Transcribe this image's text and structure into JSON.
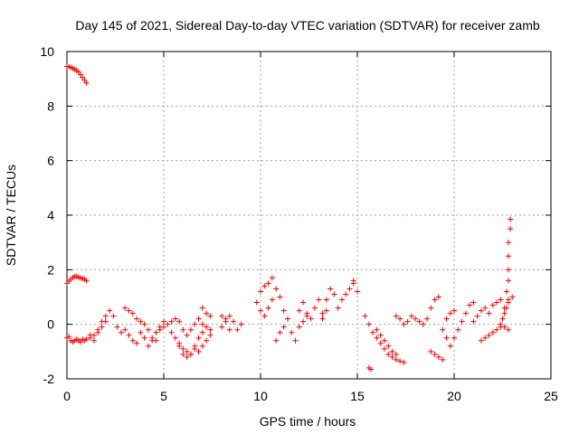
{
  "chart_data": {
    "type": "scatter",
    "title": "Day 145 of 2021, Sidereal Day-to-day VTEC variation (SDTVAR) for receiver zamb",
    "xlabel": "GPS time / hours",
    "ylabel": "SDTVAR / TECUs",
    "xlim": [
      0,
      25
    ],
    "ylim": [
      -2,
      10
    ],
    "xticks": [
      0,
      5,
      10,
      15,
      20,
      25
    ],
    "yticks": [
      -2,
      0,
      2,
      4,
      6,
      8,
      10
    ],
    "grid": true,
    "marker": "+",
    "color": "#ff0000",
    "series": [
      {
        "name": "SDTVAR",
        "x": [
          0.0,
          0.1,
          0.2,
          0.3,
          0.4,
          0.5,
          0.6,
          0.7,
          0.8,
          0.9,
          1.0,
          0.0,
          0.1,
          0.2,
          0.3,
          0.4,
          0.5,
          0.6,
          0.7,
          0.8,
          0.9,
          1.0,
          0.0,
          0.1,
          0.2,
          0.3,
          0.4,
          0.5,
          0.6,
          0.7,
          0.8,
          0.9,
          1.0,
          1.2,
          1.4,
          1.6,
          1.8,
          2.0,
          1.2,
          1.4,
          1.6,
          1.8,
          2.0,
          2.2,
          2.4,
          2.6,
          2.8,
          3.0,
          3.0,
          3.2,
          3.4,
          3.6,
          3.8,
          4.0,
          4.2,
          4.4,
          4.6,
          4.8,
          5.0,
          3.2,
          3.4,
          3.6,
          3.8,
          4.0,
          4.2,
          4.4,
          4.6,
          4.8,
          5.0,
          5.2,
          5.4,
          5.6,
          5.8,
          6.0,
          6.2,
          6.4,
          6.6,
          6.8,
          7.0,
          7.2,
          7.4,
          5.4,
          5.6,
          5.8,
          6.0,
          6.2,
          6.4,
          6.6,
          6.8,
          7.0,
          5.8,
          6.0,
          6.2,
          6.4,
          6.6,
          6.8,
          7.0,
          7.2,
          7.4,
          7.0,
          7.2,
          7.4,
          8.0,
          8.2,
          8.4,
          8.6,
          8.8,
          9.0,
          8.0,
          8.2,
          8.4,
          9.8,
          10.0,
          10.2,
          10.4,
          10.6,
          10.0,
          10.2,
          10.4,
          10.6,
          10.8,
          11.0,
          11.2,
          11.4,
          11.6,
          11.8,
          10.8,
          11.0,
          11.2,
          12.0,
          12.2,
          12.4,
          12.6,
          12.8,
          13.0,
          12.0,
          12.2,
          12.4,
          13.2,
          13.4,
          13.6,
          13.8,
          13.2,
          13.4,
          14.0,
          14.2,
          14.4,
          14.6,
          14.8,
          14.8,
          15.0,
          15.4,
          15.6,
          15.8,
          16.0,
          16.2,
          16.4,
          16.6,
          16.8,
          17.0,
          17.2,
          17.4,
          15.6,
          15.7,
          16.0,
          16.2,
          16.4,
          16.6,
          16.8,
          17.0,
          17.0,
          17.2,
          17.4,
          17.6,
          17.8,
          18.0,
          18.2,
          18.4,
          18.6,
          18.8,
          19.0,
          19.2,
          19.4,
          18.8,
          19.0,
          19.2,
          19.4,
          19.6,
          19.8,
          20.0,
          20.2,
          20.4,
          20.6,
          20.8,
          21.0,
          19.6,
          19.8,
          20.0,
          21.0,
          21.2,
          21.4,
          21.6,
          21.8,
          22.0,
          22.2,
          22.4,
          22.6,
          22.8,
          23.0,
          21.4,
          21.6,
          21.8,
          22.0,
          22.2,
          22.4,
          22.6,
          22.8,
          22.4,
          22.5,
          22.6,
          22.7,
          22.8,
          22.7,
          22.8,
          22.8,
          22.8,
          22.8,
          22.9,
          22.9
        ],
        "y": [
          9.45,
          9.45,
          9.42,
          9.38,
          9.35,
          9.3,
          9.25,
          9.15,
          9.05,
          8.95,
          8.85,
          1.5,
          1.58,
          1.65,
          1.72,
          1.75,
          1.75,
          1.72,
          1.7,
          1.68,
          1.65,
          1.6,
          -0.5,
          -0.45,
          -0.6,
          -0.65,
          -0.6,
          -0.55,
          -0.6,
          -0.65,
          -0.55,
          -0.6,
          -0.55,
          -0.5,
          -0.4,
          -0.3,
          -0.1,
          0.1,
          -0.4,
          -0.6,
          -0.2,
          0.1,
          0.3,
          0.5,
          0.3,
          -0.1,
          -0.3,
          -0.2,
          0.6,
          0.5,
          0.4,
          0.2,
          0.1,
          0.0,
          -0.2,
          -0.5,
          -0.6,
          -0.1,
          0.1,
          -0.4,
          -0.6,
          -0.7,
          -0.3,
          -0.5,
          -0.8,
          -0.6,
          -0.3,
          -0.2,
          -0.1,
          0.0,
          -0.3,
          -0.5,
          -0.8,
          -1.1,
          -1.2,
          -1.1,
          -0.9,
          -1.0,
          -0.8,
          -0.6,
          -0.4,
          0.1,
          0.2,
          0.1,
          -0.2,
          -0.4,
          -0.2,
          0.0,
          0.2,
          0.0,
          -0.7,
          -0.9,
          -1.0,
          -1.1,
          -0.8,
          -0.5,
          -0.3,
          -0.1,
          -0.2,
          0.6,
          0.4,
          0.3,
          -0.1,
          0.2,
          0.3,
          0.1,
          -0.2,
          0.0,
          0.3,
          0.1,
          -0.2,
          0.8,
          1.2,
          1.4,
          1.5,
          1.7,
          0.5,
          0.3,
          0.6,
          0.9,
          1.3,
          1.0,
          0.5,
          0.2,
          -0.3,
          -0.6,
          -0.6,
          -0.3,
          -0.1,
          0.5,
          0.8,
          0.4,
          0.2,
          0.6,
          0.9,
          -0.1,
          0.1,
          0.3,
          0.4,
          0.9,
          1.3,
          1.1,
          0.2,
          0.5,
          0.6,
          0.9,
          1.1,
          1.3,
          1.5,
          1.6,
          1.2,
          0.3,
          0.0,
          -0.3,
          -0.5,
          -0.7,
          -0.9,
          -1.1,
          -1.2,
          -1.3,
          -1.35,
          -1.4,
          -1.6,
          -1.65,
          -0.2,
          -0.4,
          -0.6,
          -0.8,
          -1.0,
          -1.1,
          0.3,
          0.2,
          0.0,
          0.1,
          0.3,
          0.2,
          0.1,
          0.0,
          0.2,
          -1.0,
          -1.1,
          -1.2,
          -1.3,
          0.6,
          0.9,
          1.0,
          -0.2,
          -0.5,
          -0.8,
          -0.5,
          -0.2,
          0.1,
          0.4,
          0.7,
          0.8,
          0.2,
          0.4,
          0.5,
          0.1,
          0.3,
          0.5,
          0.6,
          0.4,
          0.7,
          0.8,
          0.9,
          0.6,
          0.9,
          1.0,
          -0.6,
          -0.5,
          -0.4,
          -0.3,
          -0.2,
          -0.1,
          -0.1,
          -0.2,
          0.0,
          0.2,
          0.4,
          0.6,
          0.8,
          1.2,
          1.6,
          2.0,
          2.5,
          3.0,
          3.5,
          3.85
        ]
      }
    ]
  }
}
